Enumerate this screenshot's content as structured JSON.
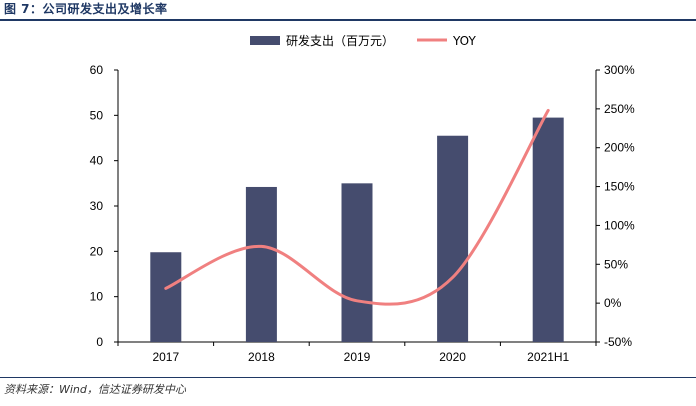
{
  "figure": {
    "title": "图 7：公司研发支出及增长率",
    "source": "资料来源：Wind，信达证券研发中心"
  },
  "colors": {
    "bar": "#454c6e",
    "line": "#f08080",
    "title": "#1f3864"
  },
  "chart_data": {
    "type": "bar",
    "categories": [
      "2017",
      "2018",
      "2019",
      "2020",
      "2021H1"
    ],
    "series": [
      {
        "name": "研发支出（百万元）",
        "type": "bar",
        "axis": "left",
        "values": [
          19.8,
          34.2,
          35.0,
          45.5,
          49.5
        ]
      },
      {
        "name": "YOY",
        "type": "line",
        "axis": "right",
        "smooth": true,
        "values": [
          0.19,
          0.73,
          0.03,
          0.33,
          2.48
        ]
      }
    ],
    "y_left": {
      "min": 0,
      "max": 60,
      "step": 10,
      "tick_labels": [
        "0",
        "10",
        "20",
        "30",
        "40",
        "50",
        "60"
      ]
    },
    "y_right": {
      "min": -0.5,
      "max": 3.0,
      "step": 0.5,
      "tick_labels": [
        "-50%",
        "0%",
        "50%",
        "100%",
        "150%",
        "200%",
        "250%",
        "300%"
      ]
    },
    "legend": {
      "placement": "top-center"
    },
    "grid": false
  }
}
